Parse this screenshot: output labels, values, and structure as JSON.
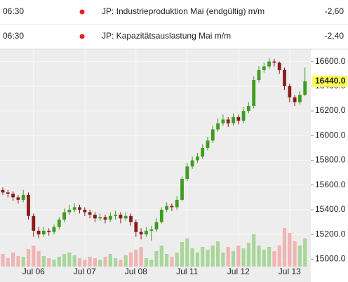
{
  "events": [
    {
      "time": "06:30",
      "event": "JP: Industrieproduktion Mai (endgültig) m/m",
      "value": "-2,60"
    },
    {
      "time": "06:30",
      "event": "JP: Kapazitätsauslastung Mai m/m",
      "value": "-2,40"
    }
  ],
  "chart_data": {
    "type": "candlestick",
    "categories": [
      null,
      null,
      null,
      null,
      null,
      null,
      "Jul 06",
      null,
      null,
      null,
      null,
      null,
      null,
      null,
      null,
      null,
      "Jul 07",
      null,
      null,
      null,
      null,
      null,
      null,
      null,
      null,
      null,
      "Jul 08",
      null,
      null,
      null,
      null,
      null,
      null,
      null,
      null,
      null,
      "Jul 11",
      null,
      null,
      null,
      null,
      null,
      null,
      null,
      null,
      null,
      "Jul 12",
      null,
      null,
      null,
      null,
      null,
      null,
      null,
      null,
      null,
      "Jul 13",
      null,
      null,
      null
    ],
    "open": [
      15560,
      15540,
      15530,
      15500,
      15480,
      15520,
      15350,
      15230,
      15200,
      15230,
      15220,
      15260,
      15320,
      15380,
      15400,
      15420,
      15400,
      15380,
      15360,
      15330,
      15340,
      15320,
      15350,
      15360,
      15330,
      15350,
      15300,
      15220,
      15200,
      15230,
      15240,
      15300,
      15400,
      15430,
      15420,
      15480,
      15650,
      15750,
      15800,
      15830,
      15900,
      15960,
      16050,
      16100,
      16130,
      16100,
      16150,
      16120,
      16200,
      16240,
      16450,
      16530,
      16560,
      16600,
      16590,
      16530,
      16400,
      16310,
      16270,
      16330
    ],
    "high": [
      15580,
      15560,
      15550,
      15520,
      15560,
      15540,
      15370,
      15260,
      15260,
      15250,
      15280,
      15340,
      15410,
      15440,
      15450,
      15440,
      15420,
      15400,
      15380,
      15370,
      15360,
      15380,
      15390,
      15380,
      15380,
      15370,
      15320,
      15250,
      15260,
      15270,
      15330,
      15420,
      15460,
      15450,
      15510,
      15670,
      15780,
      15830,
      15860,
      15930,
      15990,
      16080,
      16140,
      16170,
      16150,
      16180,
      16170,
      16230,
      16270,
      16480,
      16560,
      16590,
      16630,
      16620,
      16600,
      16550,
      16420,
      16330,
      16360,
      16550
    ],
    "low": [
      15520,
      15500,
      15470,
      15450,
      15460,
      15320,
      15180,
      15170,
      15180,
      15190,
      15200,
      15240,
      15300,
      15360,
      15380,
      15370,
      15350,
      15330,
      15300,
      15310,
      15290,
      15300,
      15320,
      15290,
      15310,
      15270,
      15180,
      15160,
      15180,
      15150,
      15220,
      15290,
      15380,
      15390,
      15400,
      15470,
      15630,
      15730,
      15780,
      15810,
      15880,
      15940,
      16030,
      16080,
      16070,
      16080,
      16090,
      16100,
      16180,
      16220,
      16430,
      16510,
      16540,
      16560,
      16500,
      16370,
      16270,
      16240,
      16250,
      16320
    ],
    "close": [
      15540,
      15530,
      15500,
      15480,
      15520,
      15350,
      15230,
      15200,
      15230,
      15220,
      15260,
      15320,
      15380,
      15400,
      15420,
      15400,
      15380,
      15360,
      15330,
      15340,
      15320,
      15350,
      15360,
      15330,
      15350,
      15300,
      15220,
      15200,
      15230,
      15240,
      15300,
      15400,
      15430,
      15420,
      15480,
      15650,
      15750,
      15800,
      15830,
      15900,
      15960,
      16050,
      16100,
      16130,
      16100,
      16150,
      16120,
      16200,
      16240,
      16450,
      16530,
      16560,
      16600,
      16590,
      16530,
      16400,
      16310,
      16270,
      16330,
      16440
    ],
    "volume": [
      18,
      12,
      20,
      15,
      14,
      25,
      30,
      22,
      15,
      12,
      10,
      14,
      18,
      20,
      16,
      12,
      10,
      14,
      12,
      10,
      14,
      18,
      12,
      10,
      16,
      20,
      24,
      28,
      12,
      10,
      22,
      30,
      18,
      14,
      20,
      35,
      40,
      26,
      20,
      28,
      24,
      30,
      36,
      20,
      28,
      22,
      30,
      26,
      34,
      46,
      30,
      24,
      28,
      22,
      30,
      55,
      48,
      36,
      30,
      40
    ],
    "up_color": "#3f9c1f",
    "down_color": "#8a1c1c",
    "volume_up_color": "#a9d69a",
    "volume_down_color": "#f0b4b4",
    "last_price": {
      "value": 16440,
      "label": "16440.0"
    },
    "ylim": [
      14940,
      16700
    ],
    "yticks": [
      {
        "value": 15000,
        "label": "15000.0"
      },
      {
        "value": 15200,
        "label": "15200.0"
      },
      {
        "value": 15400,
        "label": "15400.0"
      },
      {
        "value": 15600,
        "label": "15600.0"
      },
      {
        "value": 15800,
        "label": "15800.0"
      },
      {
        "value": 16000,
        "label": "16000.0"
      },
      {
        "value": 16200,
        "label": "16200.0"
      },
      {
        "value": 16400,
        "label": "16400.0"
      },
      {
        "value": 16600,
        "label": "16600.0"
      }
    ],
    "grid": true
  }
}
